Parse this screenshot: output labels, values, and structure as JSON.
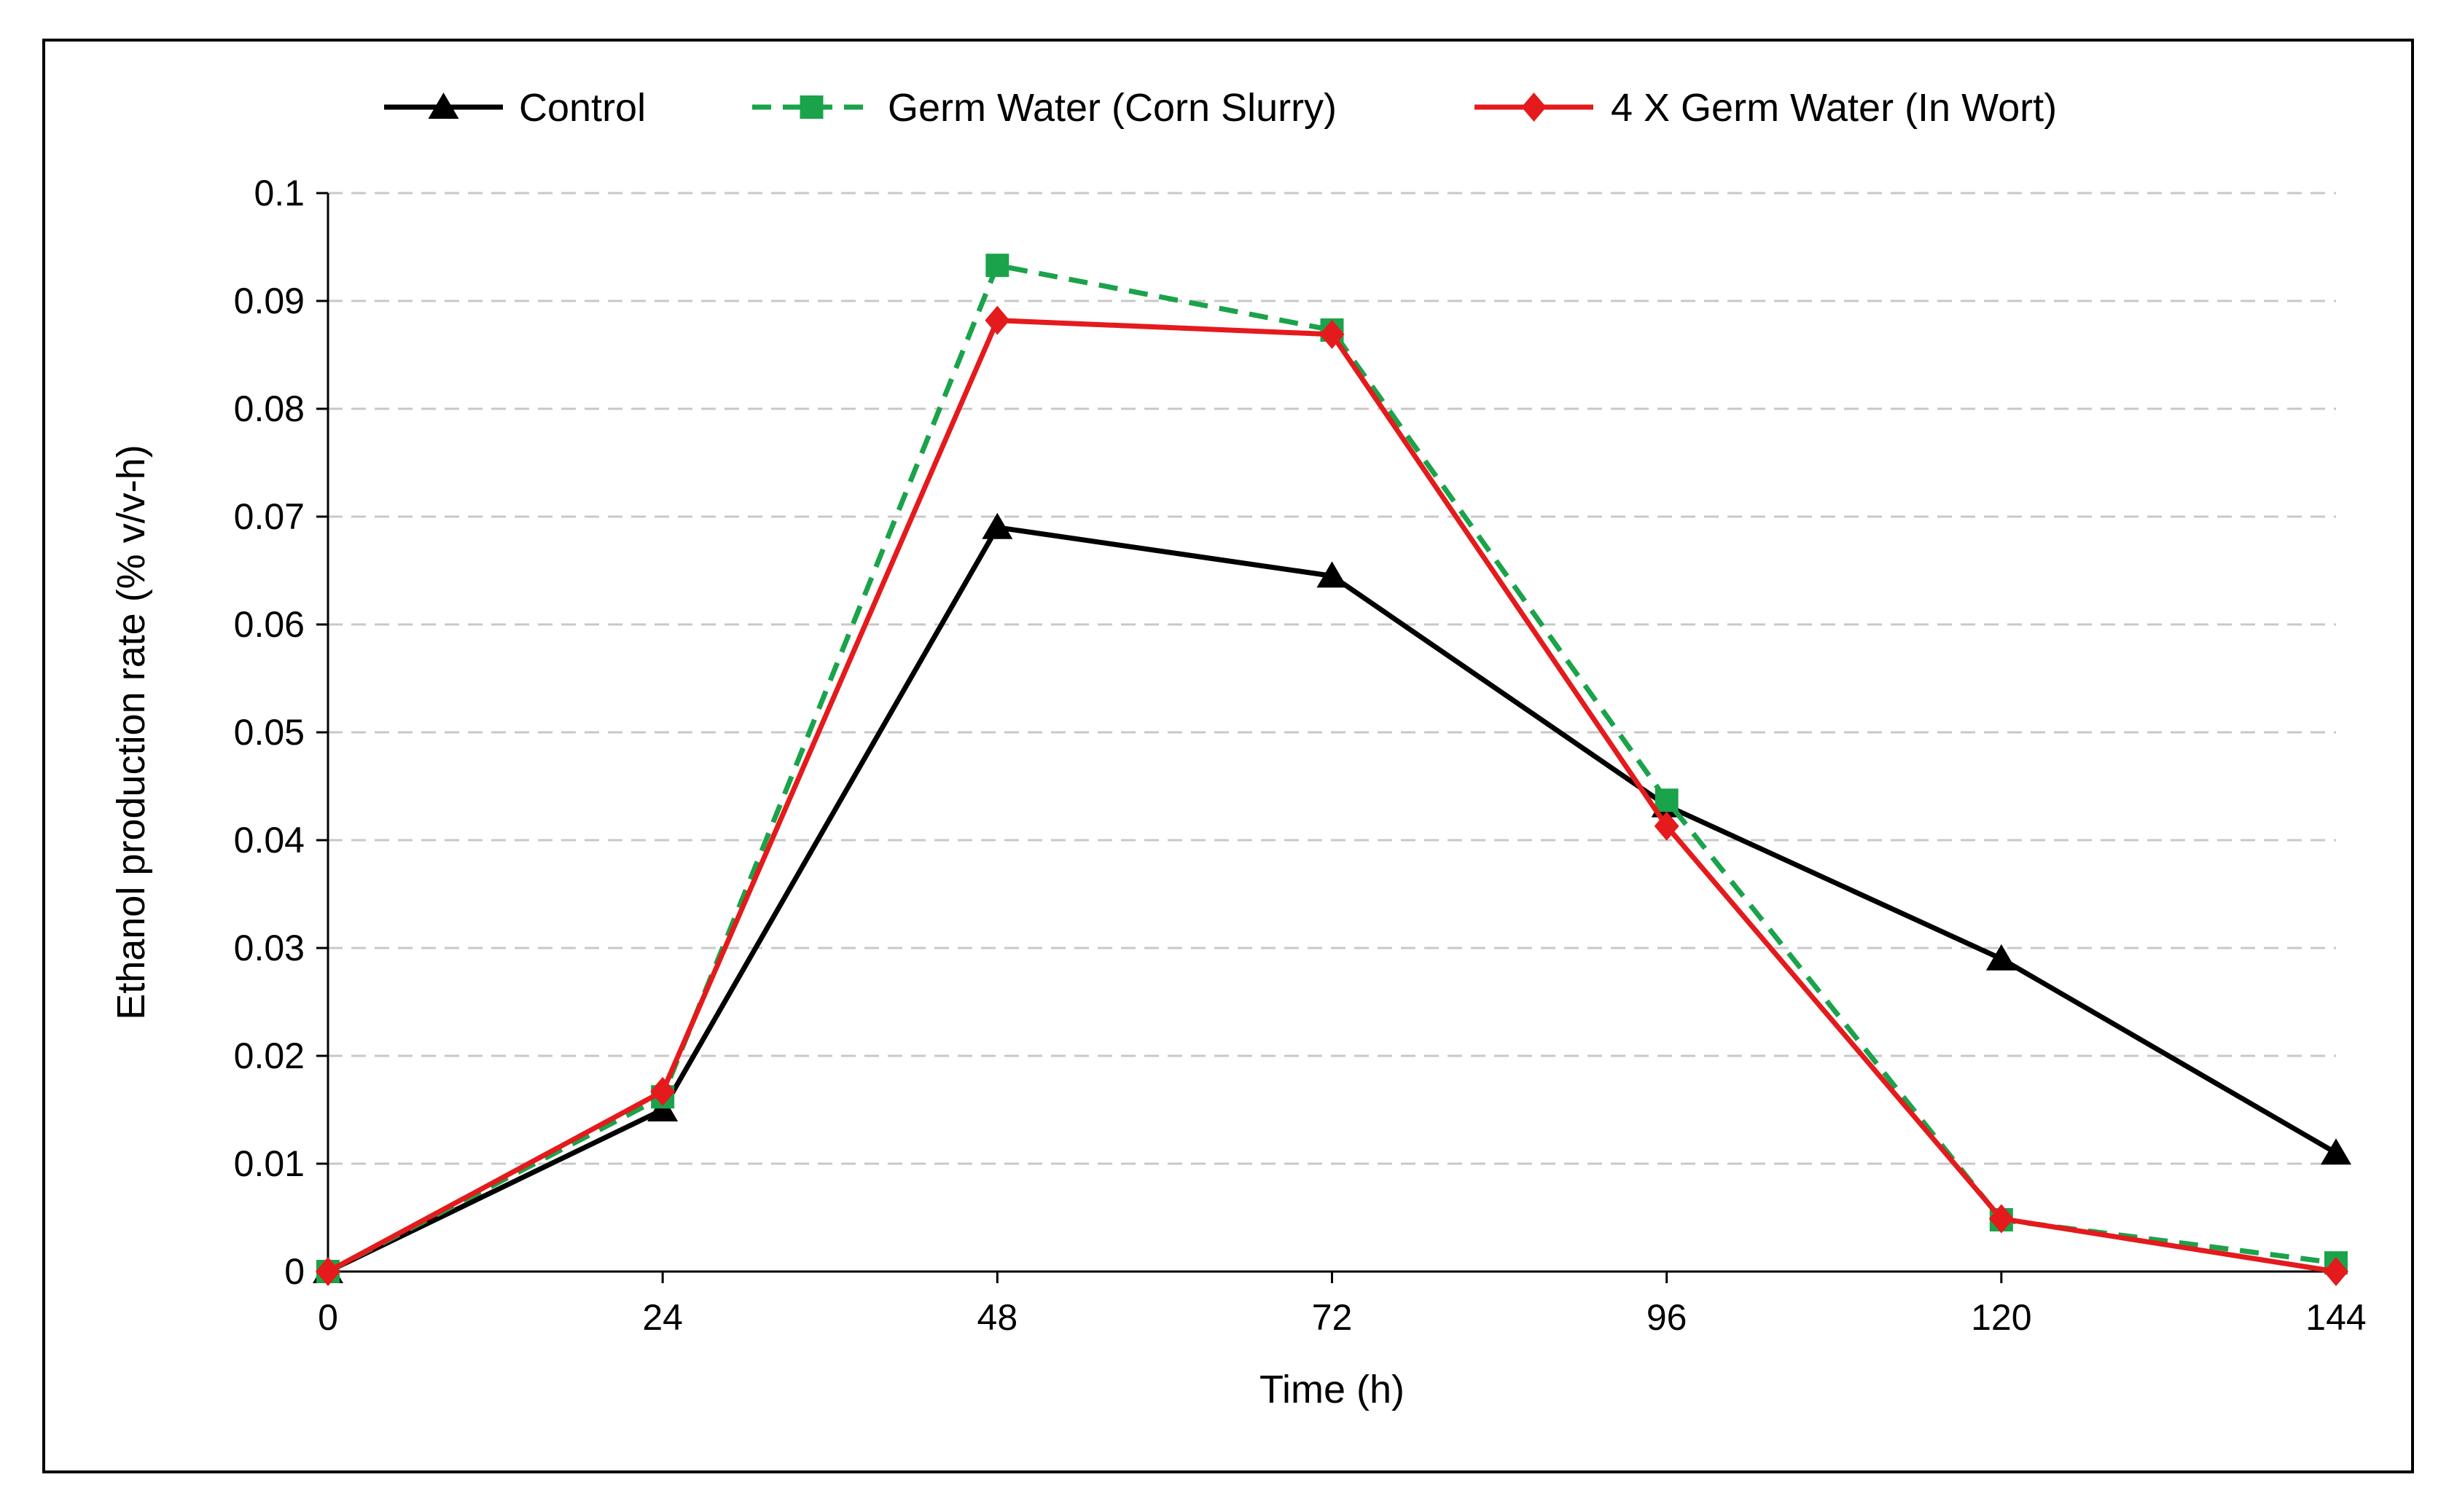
{
  "chart_data": {
    "type": "line",
    "xlabel": "Time (h)",
    "ylabel": "Ethanol production rate (% v/v-h)",
    "x": [
      0,
      24,
      48,
      72,
      96,
      120,
      144
    ],
    "xlim": [
      0,
      144
    ],
    "ylim": [
      0,
      0.1
    ],
    "x_ticks": [
      0,
      24,
      48,
      72,
      96,
      120,
      144
    ],
    "x_tick_labels": [
      "0",
      "24",
      "48",
      "72",
      "96",
      "120",
      "144"
    ],
    "y_ticks": [
      0,
      0.01,
      0.02,
      0.03,
      0.04,
      0.05,
      0.06,
      0.07,
      0.08,
      0.09,
      0.1
    ],
    "y_tick_labels": [
      "0",
      "0.01",
      "0.02",
      "0.03",
      "0.04",
      "0.05",
      "0.06",
      "0.07",
      "0.08",
      "0.09",
      "0.1"
    ],
    "grid": "horizontal dashed",
    "legend_position": "top",
    "series": [
      {
        "name": "Control",
        "color": "#000000",
        "marker": "triangle",
        "line_style": "solid",
        "values": [
          0,
          0.015,
          0.069,
          0.0645,
          0.0432,
          0.029,
          0.011
        ]
      },
      {
        "name": "Germ Water (Corn Slurry)",
        "color": "#1aa34a",
        "marker": "square",
        "line_style": "dashed",
        "values": [
          0,
          0.0162,
          0.0933,
          0.0873,
          0.0437,
          0.0048,
          0.0008
        ]
      },
      {
        "name": "4 X Germ Water (In Wort)",
        "color": "#e41a1c",
        "marker": "diamond",
        "line_style": "solid",
        "values": [
          0,
          0.0167,
          0.0882,
          0.0869,
          0.0413,
          0.0049,
          0
        ]
      }
    ]
  }
}
